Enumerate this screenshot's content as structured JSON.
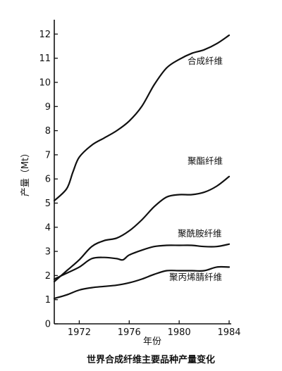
{
  "chart_data": {
    "type": "line",
    "title": "世界合成纤维主要品种产量变化",
    "xlabel": "年份",
    "ylabel": "产量（Mt）",
    "xlim": [
      1970,
      1984
    ],
    "ylim": [
      0,
      12.5
    ],
    "x_ticks": [
      1972,
      1976,
      1980,
      1984
    ],
    "y_ticks": [
      0,
      1,
      2,
      3,
      4,
      5,
      6,
      7,
      8,
      9,
      10,
      11,
      12
    ],
    "grid": false,
    "legend": "none",
    "series": [
      {
        "name": "合成纤维",
        "points": [
          [
            1970,
            5.1
          ],
          [
            1971,
            5.6
          ],
          [
            1971.5,
            6.3
          ],
          [
            1972,
            6.9
          ],
          [
            1973,
            7.4
          ],
          [
            1974,
            7.7
          ],
          [
            1975,
            8.0
          ],
          [
            1976,
            8.4
          ],
          [
            1977,
            9.0
          ],
          [
            1978,
            9.9
          ],
          [
            1979,
            10.6
          ],
          [
            1980,
            10.95
          ],
          [
            1981,
            11.2
          ],
          [
            1982,
            11.35
          ],
          [
            1983,
            11.6
          ],
          [
            1984,
            11.95
          ]
        ]
      },
      {
        "name": "聚酯纤维",
        "points": [
          [
            1970,
            1.75
          ],
          [
            1971,
            2.2
          ],
          [
            1972,
            2.65
          ],
          [
            1973,
            3.2
          ],
          [
            1974,
            3.45
          ],
          [
            1975,
            3.55
          ],
          [
            1976,
            3.85
          ],
          [
            1977,
            4.3
          ],
          [
            1978,
            4.85
          ],
          [
            1979,
            5.25
          ],
          [
            1980,
            5.35
          ],
          [
            1981,
            5.35
          ],
          [
            1982,
            5.45
          ],
          [
            1983,
            5.7
          ],
          [
            1984,
            6.1
          ]
        ]
      },
      {
        "name": "聚酰胺纤维",
        "points": [
          [
            1970,
            1.85
          ],
          [
            1971,
            2.1
          ],
          [
            1972,
            2.35
          ],
          [
            1973,
            2.7
          ],
          [
            1974,
            2.75
          ],
          [
            1975,
            2.7
          ],
          [
            1975.5,
            2.65
          ],
          [
            1976,
            2.85
          ],
          [
            1977,
            3.05
          ],
          [
            1978,
            3.2
          ],
          [
            1979,
            3.25
          ],
          [
            1980,
            3.25
          ],
          [
            1981,
            3.25
          ],
          [
            1982,
            3.2
          ],
          [
            1983,
            3.2
          ],
          [
            1984,
            3.3
          ]
        ]
      },
      {
        "name": "聚丙烯腈纤维",
        "points": [
          [
            1970,
            1.05
          ],
          [
            1971,
            1.2
          ],
          [
            1972,
            1.4
          ],
          [
            1973,
            1.5
          ],
          [
            1974,
            1.55
          ],
          [
            1975,
            1.6
          ],
          [
            1976,
            1.7
          ],
          [
            1977,
            1.85
          ],
          [
            1978,
            2.05
          ],
          [
            1979,
            2.2
          ],
          [
            1980,
            2.2
          ],
          [
            1981,
            2.2
          ],
          [
            1982,
            2.2
          ],
          [
            1983,
            2.35
          ],
          [
            1984,
            2.35
          ]
        ]
      }
    ]
  }
}
